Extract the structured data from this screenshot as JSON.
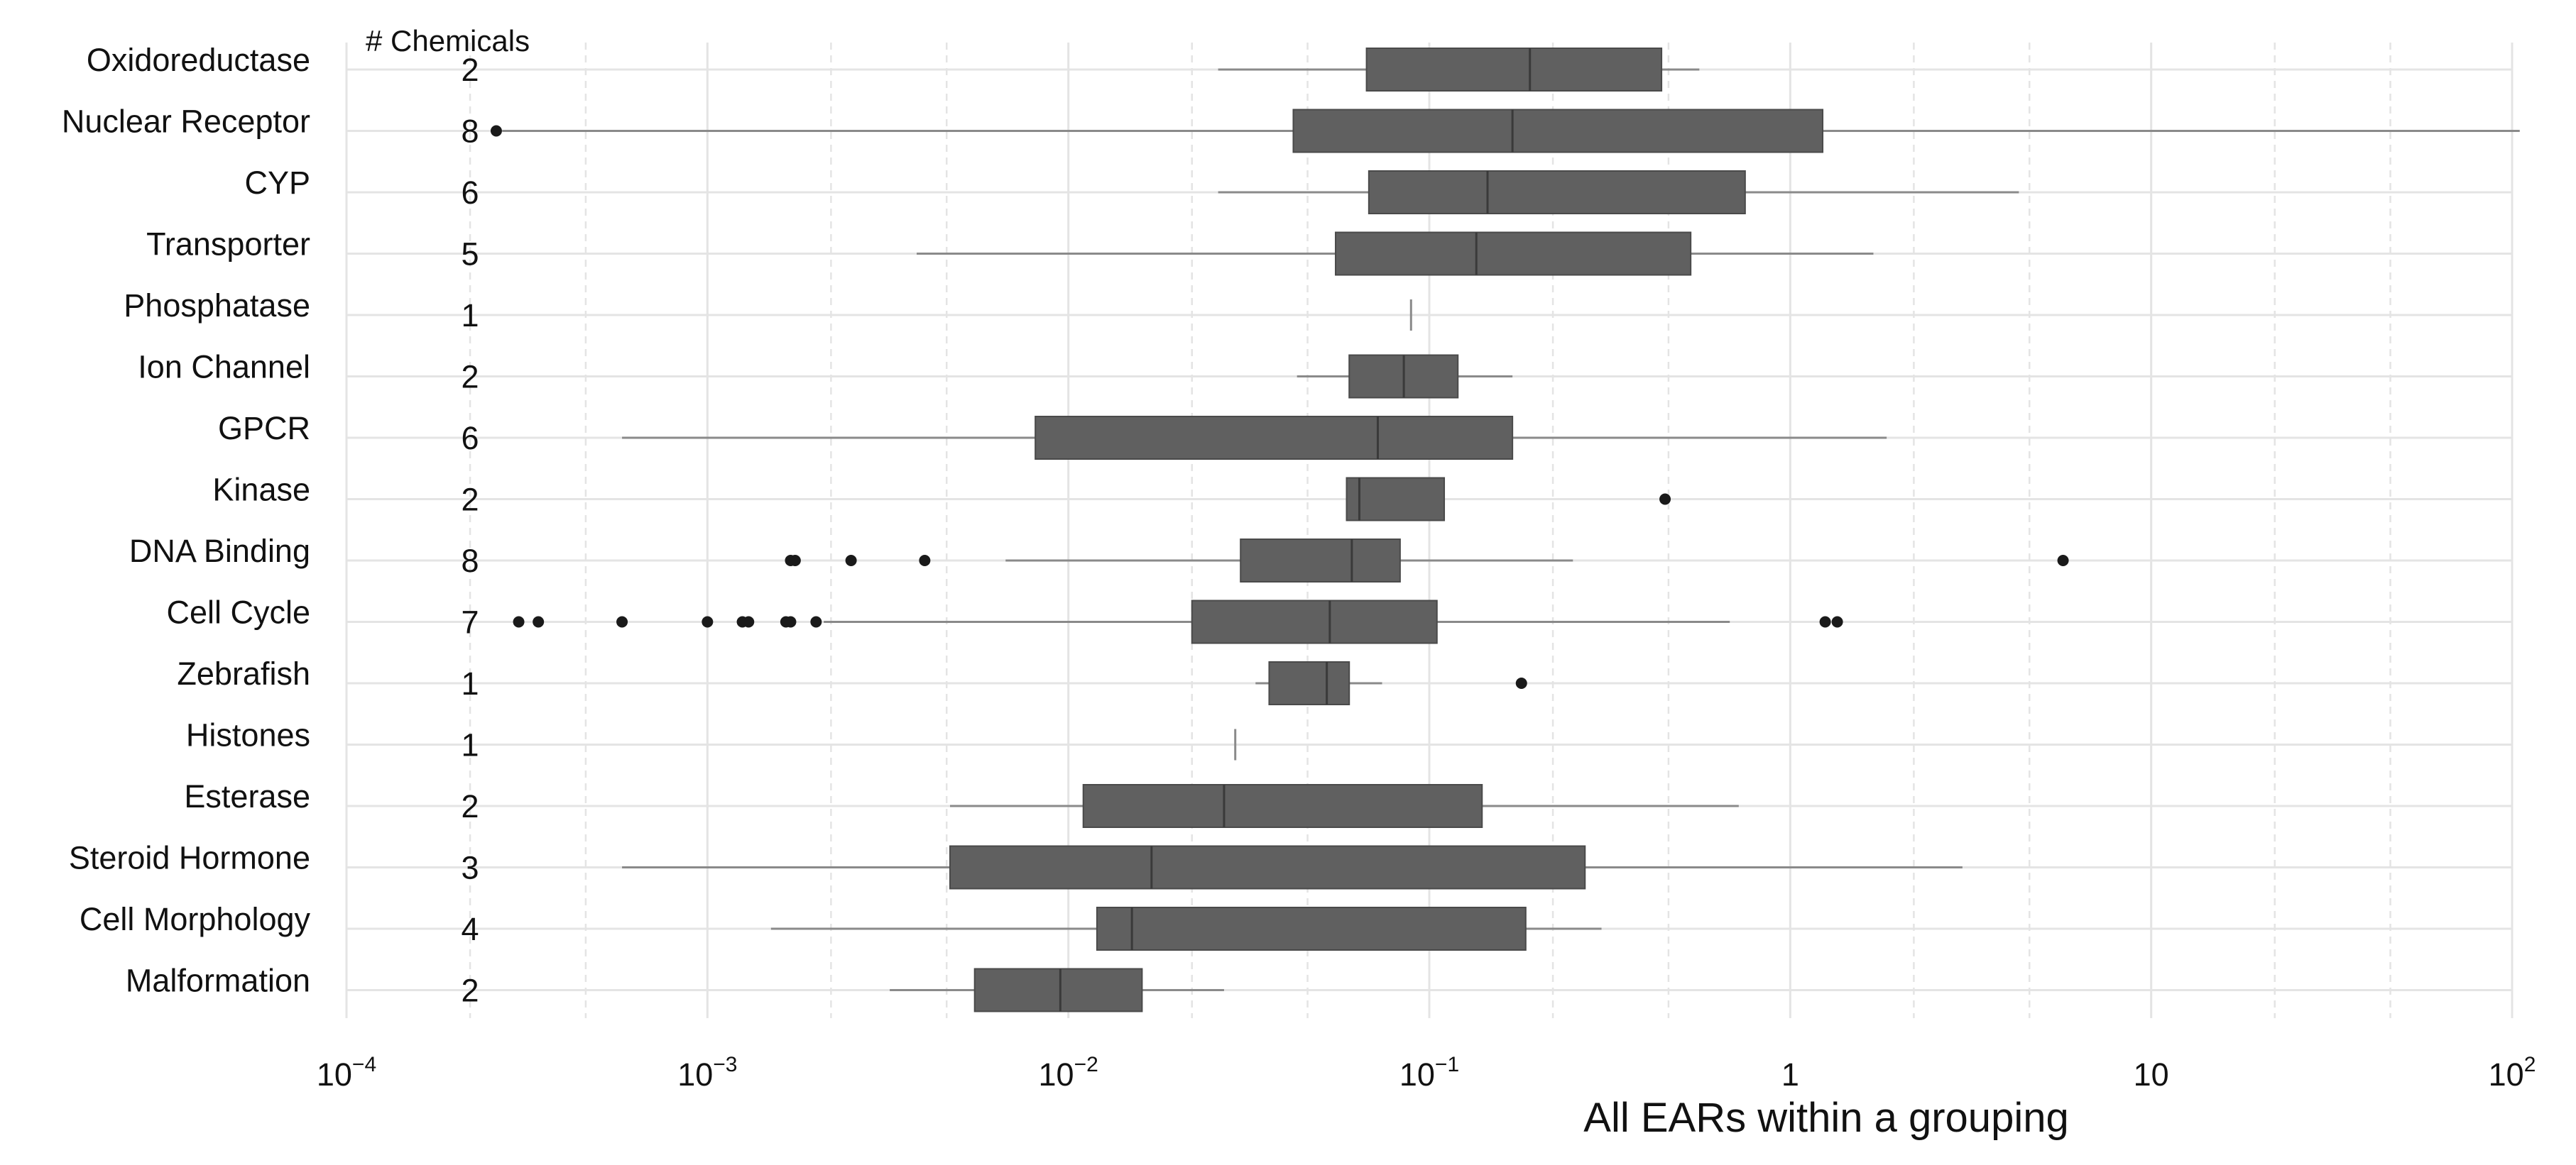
{
  "colors": {
    "box_fill": "#606060",
    "box_stroke": "#4a4a4a",
    "whisker": "#8a8a8a",
    "outlier": "#1a1a1a",
    "grid": "#e4e4e4",
    "background": "#ffffff"
  },
  "chart_data": {
    "type": "box",
    "title": "",
    "xlabel": "All EARs within a grouping",
    "ylabel": "",
    "count_header": "# Chemicals",
    "x_scale": "log",
    "xlim": [
      0.0001,
      100
    ],
    "x_ticks": [
      {
        "value": 0.0001,
        "base": "10",
        "exp": "−4"
      },
      {
        "value": 0.001,
        "base": "10",
        "exp": "−3"
      },
      {
        "value": 0.01,
        "base": "10",
        "exp": "−2"
      },
      {
        "value": 0.1,
        "base": "10",
        "exp": "−1"
      },
      {
        "value": 1,
        "base": "1",
        "exp": ""
      },
      {
        "value": 10,
        "base": "10",
        "exp": ""
      },
      {
        "value": 100,
        "base": "10",
        "exp": "2"
      }
    ],
    "grid": true,
    "categories": [
      {
        "label": "Oxidoreductase",
        "count": "2",
        "whisker_low": 0.026,
        "q1": 0.067,
        "median": 0.19,
        "q3": 0.44,
        "whisker_high": 0.56,
        "outliers": []
      },
      {
        "label": "Nuclear Receptor",
        "count": "8",
        "whisker_low": 0.00027,
        "q1": 0.042,
        "median": 0.17,
        "q3": 1.23,
        "whisker_high": 105,
        "outliers": [
          0.00026
        ]
      },
      {
        "label": "CYP",
        "count": "6",
        "whisker_low": 0.026,
        "q1": 0.068,
        "median": 0.145,
        "q3": 0.75,
        "whisker_high": 4.3,
        "outliers": []
      },
      {
        "label": "Transporter",
        "count": "5",
        "whisker_low": 0.0038,
        "q1": 0.055,
        "median": 0.135,
        "q3": 0.53,
        "whisker_high": 1.7,
        "outliers": []
      },
      {
        "label": "Phosphatase",
        "count": "1",
        "whisker_low": 0.089,
        "q1": 0.089,
        "median": 0.089,
        "q3": 0.089,
        "whisker_high": 0.089,
        "outliers": []
      },
      {
        "label": "Ion Channel",
        "count": "2",
        "whisker_low": 0.043,
        "q1": 0.06,
        "median": 0.085,
        "q3": 0.12,
        "whisker_high": 0.17,
        "outliers": []
      },
      {
        "label": "GPCR",
        "count": "6",
        "whisker_low": 0.00058,
        "q1": 0.0081,
        "median": 0.072,
        "q3": 0.17,
        "whisker_high": 1.85,
        "outliers": []
      },
      {
        "label": "Kinase",
        "count": "2",
        "whisker_low": 0.059,
        "q1": 0.059,
        "median": 0.064,
        "q3": 0.11,
        "whisker_high": 0.11,
        "outliers": [
          0.45
        ]
      },
      {
        "label": "DNA Binding",
        "count": "8",
        "whisker_low": 0.0067,
        "q1": 0.03,
        "median": 0.061,
        "q3": 0.083,
        "whisker_high": 0.25,
        "outliers": [
          0.0017,
          0.00175,
          0.0025,
          0.004,
          5.7
        ]
      },
      {
        "label": "Cell Cycle",
        "count": "7",
        "whisker_low": 0.0021,
        "q1": 0.022,
        "median": 0.053,
        "q3": 0.105,
        "whisker_high": 0.68,
        "outliers": [
          0.0003,
          0.00034,
          0.00058,
          0.001,
          0.00125,
          0.0013,
          0.00165,
          0.0017,
          0.002,
          1.25,
          1.35
        ]
      },
      {
        "label": "Zebrafish",
        "count": "1",
        "whisker_low": 0.033,
        "q1": 0.036,
        "median": 0.052,
        "q3": 0.06,
        "whisker_high": 0.074,
        "outliers": [
          0.18
        ]
      },
      {
        "label": "Histones",
        "count": "1",
        "whisker_low": 0.029,
        "q1": 0.029,
        "median": 0.029,
        "q3": 0.029,
        "whisker_high": 0.029,
        "outliers": []
      },
      {
        "label": "Esterase",
        "count": "2",
        "whisker_low": 0.0047,
        "q1": 0.011,
        "median": 0.027,
        "q3": 0.14,
        "whisker_high": 0.72,
        "outliers": []
      },
      {
        "label": "Steroid Hormone",
        "count": "3",
        "whisker_low": 0.00058,
        "q1": 0.0047,
        "median": 0.017,
        "q3": 0.27,
        "whisker_high": 3.0,
        "outliers": []
      },
      {
        "label": "Cell Morphology",
        "count": "4",
        "whisker_low": 0.0015,
        "q1": 0.012,
        "median": 0.015,
        "q3": 0.185,
        "whisker_high": 0.3,
        "outliers": []
      },
      {
        "label": "Malformation",
        "count": "2",
        "whisker_low": 0.0032,
        "q1": 0.0055,
        "median": 0.0095,
        "q3": 0.016,
        "whisker_high": 0.027,
        "outliers": []
      }
    ]
  }
}
